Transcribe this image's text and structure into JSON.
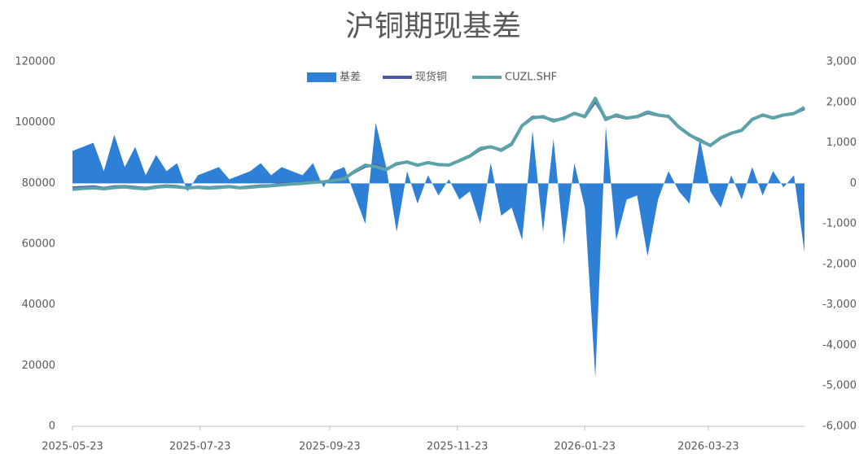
{
  "chart_data": {
    "type": "combo",
    "title": "沪铜期现基差",
    "x": [
      "2025-05-23",
      "2025-05-28",
      "2025-06-02",
      "2025-06-07",
      "2025-06-12",
      "2025-06-17",
      "2025-06-22",
      "2025-06-27",
      "2025-07-02",
      "2025-07-07",
      "2025-07-12",
      "2025-07-17",
      "2025-07-22",
      "2025-07-27",
      "2025-08-01",
      "2025-08-06",
      "2025-08-11",
      "2025-08-16",
      "2025-08-21",
      "2025-08-26",
      "2025-08-31",
      "2025-09-05",
      "2025-09-10",
      "2025-09-15",
      "2025-09-20",
      "2025-09-25",
      "2025-09-30",
      "2025-10-05",
      "2025-10-10",
      "2025-10-15",
      "2025-10-20",
      "2025-10-25",
      "2025-10-30",
      "2025-11-04",
      "2025-11-09",
      "2025-11-14",
      "2025-11-19",
      "2025-11-24",
      "2025-11-29",
      "2025-12-04",
      "2025-12-09",
      "2025-12-14",
      "2025-12-19",
      "2025-12-24",
      "2025-12-29",
      "2026-01-03",
      "2026-01-08",
      "2026-01-13",
      "2026-01-18",
      "2026-01-23",
      "2026-01-28",
      "2026-02-02",
      "2026-02-07",
      "2026-02-12",
      "2026-02-17",
      "2026-02-22",
      "2026-02-27",
      "2026-03-04",
      "2026-03-09",
      "2026-03-14",
      "2026-03-19",
      "2026-03-24",
      "2026-03-29",
      "2026-04-03",
      "2026-04-08",
      "2026-04-13",
      "2026-04-18",
      "2026-04-23",
      "2026-04-28",
      "2026-05-03",
      "2026-05-08"
    ],
    "xlim": [
      "2025-05-23",
      "2026-05-08"
    ],
    "xticks": [
      "2025-05-23",
      "2025-07-23",
      "2025-09-23",
      "2025-11-23",
      "2026-01-23",
      "2026-03-23"
    ],
    "series": [
      {
        "name": "基差",
        "kind": "area",
        "axis": "y2",
        "color": "#2e7fd6",
        "values": [
          800,
          900,
          1000,
          300,
          1200,
          400,
          900,
          200,
          700,
          300,
          500,
          -200,
          200,
          300,
          400,
          100,
          200,
          300,
          500,
          200,
          400,
          300,
          200,
          500,
          -100,
          300,
          400,
          -300,
          -1000,
          1500,
          400,
          -1200,
          300,
          -500,
          200,
          -300,
          100,
          -400,
          -200,
          -1000,
          500,
          -800,
          -600,
          -1400,
          1300,
          -1200,
          1100,
          -1500,
          500,
          -600,
          -4800,
          1400,
          -1400,
          -400,
          -300,
          -1800,
          -400,
          300,
          -200,
          -500,
          1100,
          -200,
          -600,
          200,
          -400,
          400,
          -300,
          300,
          -100,
          200,
          -1700
        ]
      },
      {
        "name": "现货铜",
        "kind": "line",
        "axis": "y",
        "color": "#4a5aa8",
        "values": [
          78500,
          78700,
          78900,
          78400,
          78900,
          79000,
          78700,
          78400,
          78900,
          79200,
          79000,
          78400,
          78800,
          78600,
          78800,
          79000,
          78600,
          78900,
          79200,
          79300,
          79700,
          79900,
          80200,
          80500,
          80400,
          81200,
          81700,
          83800,
          85600,
          86000,
          84700,
          86300,
          87100,
          85900,
          86900,
          86100,
          86000,
          87400,
          88900,
          91200,
          92100,
          90800,
          92800,
          99000,
          101800,
          101800,
          100800,
          101300,
          103100,
          101900,
          107000,
          101400,
          102200,
          101400,
          101900,
          103200,
          102400,
          102100,
          98400,
          95900,
          94300,
          92400,
          94900,
          96500,
          97400,
          101100,
          102400,
          101600,
          102500,
          103000,
          104600
        ]
      },
      {
        "name": "CUZL.SHF",
        "kind": "line",
        "axis": "y",
        "color": "#5ba3a8",
        "values": [
          78000,
          78300,
          78500,
          78200,
          78600,
          78800,
          78400,
          78200,
          78700,
          79000,
          78800,
          78500,
          78700,
          78400,
          78600,
          78900,
          78500,
          78700,
          79000,
          79200,
          79500,
          79800,
          80000,
          80300,
          80500,
          81000,
          81500,
          84000,
          86000,
          85500,
          84500,
          86500,
          87000,
          86000,
          86800,
          86200,
          86000,
          87500,
          89000,
          91500,
          92000,
          91000,
          93000,
          99000,
          101500,
          102000,
          100500,
          101500,
          103000,
          102000,
          108000,
          101000,
          102500,
          101500,
          102000,
          103500,
          102500,
          102000,
          98500,
          96000,
          94000,
          92500,
          95000,
          96500,
          97500,
          101000,
          102500,
          101500,
          102500,
          103000,
          105000
        ]
      }
    ],
    "ylim": [
      0,
      120000
    ],
    "yticks": [
      0,
      20000,
      40000,
      60000,
      80000,
      100000,
      120000
    ],
    "y2lim": [
      -6000,
      3000
    ],
    "y2ticks": [
      {
        "value": -6000,
        "label": "-6,000"
      },
      {
        "value": -5000,
        "label": "-5,000"
      },
      {
        "value": -4000,
        "label": "-4,000"
      },
      {
        "value": -3000,
        "label": "-3,000"
      },
      {
        "value": -2000,
        "label": "-2,000"
      },
      {
        "value": -1000,
        "label": "-1,000"
      },
      0,
      {
        "value": 1000,
        "label": "1,000"
      },
      {
        "value": 2000,
        "label": "2,000"
      },
      {
        "value": 3000,
        "label": "3,000"
      }
    ],
    "legend": "top"
  }
}
